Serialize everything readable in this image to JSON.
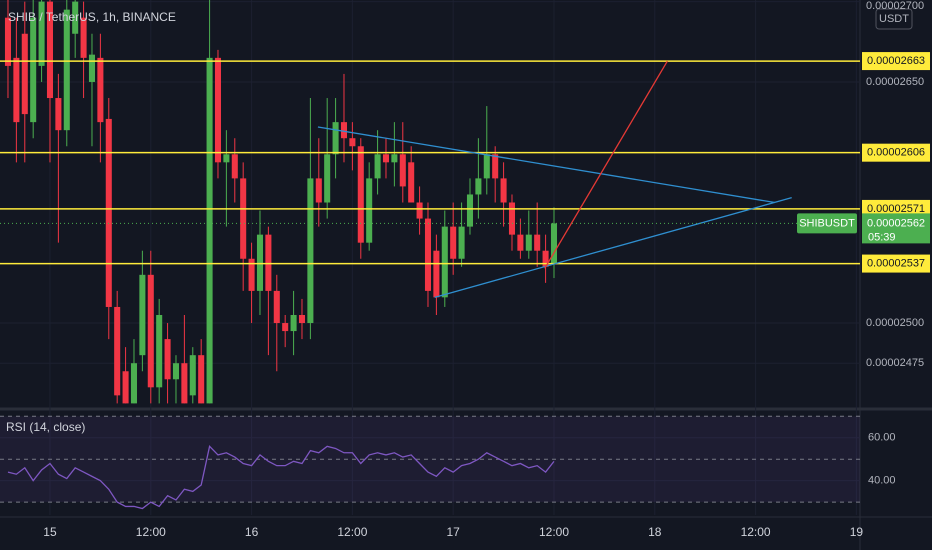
{
  "header": {
    "title": "SHIB / TetherUS, 1h, BINANCE"
  },
  "chart_data": [
    {
      "type": "candlestick",
      "currency": "USDT",
      "up_color": "#4caf50",
      "down_color": "#f23645",
      "candles": {
        "open": [
          2.69e-05,
          2.665e-05,
          2.68e-05,
          2.625e-05,
          2.66e-05,
          2.7e-05,
          2.64e-05,
          2.62e-05,
          2.68e-05,
          2.69e-05,
          2.65e-05,
          2.665e-05,
          2.627e-05,
          2.51e-05,
          2.47e-05,
          2.45e-05,
          2.48e-05,
          2.53e-05,
          2.46e-05,
          2.49e-05,
          2.465e-05,
          2.475e-05,
          2.455e-05,
          2.48e-05,
          2.45e-05,
          2.665e-05,
          2.6e-05,
          2.605e-05,
          2.59e-05,
          2.54e-05,
          2.52e-05,
          2.555e-05,
          2.52e-05,
          2.5e-05,
          2.495e-05,
          2.505e-05,
          2.5e-05,
          2.59e-05,
          2.575e-05,
          2.605e-05,
          2.625e-05,
          2.615e-05,
          2.61e-05,
          2.55e-05,
          2.59e-05,
          2.605e-05,
          2.6e-05,
          2.605e-05,
          2.6e-05,
          2.575e-05,
          2.565e-05,
          2.545e-05,
          2.516e-05,
          2.56e-05,
          2.54e-05,
          2.56e-05,
          2.58e-05,
          2.59e-05,
          2.605e-05,
          2.59e-05,
          2.575e-05,
          2.555e-05,
          2.545e-05,
          2.555e-05,
          2.545e-05,
          2.537e-05
        ],
        "high": [
          2.705e-05,
          2.69e-05,
          2.7e-05,
          2.705e-05,
          2.705e-05,
          2.705e-05,
          2.655e-05,
          2.705e-05,
          2.705e-05,
          2.7e-05,
          2.68e-05,
          2.68e-05,
          2.64e-05,
          2.52e-05,
          2.485e-05,
          2.49e-05,
          2.545e-05,
          2.545e-05,
          2.515e-05,
          2.5e-05,
          2.48e-05,
          2.505e-05,
          2.485e-05,
          2.49e-05,
          2.705e-05,
          2.67e-05,
          2.62e-05,
          2.615e-05,
          2.6e-05,
          2.55e-05,
          2.57e-05,
          2.56e-05,
          2.53e-05,
          2.505e-05,
          2.52e-05,
          2.515e-05,
          2.64e-05,
          2.615e-05,
          2.64e-05,
          2.64e-05,
          2.655e-05,
          2.625e-05,
          2.615e-05,
          2.6e-05,
          2.62e-05,
          2.615e-05,
          2.625e-05,
          2.625e-05,
          2.61e-05,
          2.585e-05,
          2.575e-05,
          2.555e-05,
          2.57e-05,
          2.575e-05,
          2.575e-05,
          2.59e-05,
          2.615e-05,
          2.635e-05,
          2.61e-05,
          2.6e-05,
          2.58e-05,
          2.565e-05,
          2.57e-05,
          2.575e-05,
          2.555e-05,
          2.572e-05
        ],
        "low": [
          2.64e-05,
          2.6e-05,
          2.6e-05,
          2.615e-05,
          2.65e-05,
          2.6e-05,
          2.55e-05,
          2.61e-05,
          2.665e-05,
          2.64e-05,
          2.61e-05,
          2.6e-05,
          2.49e-05,
          2.45e-05,
          2.45e-05,
          2.45e-05,
          2.47e-05,
          2.45e-05,
          2.45e-05,
          2.45e-05,
          2.45e-05,
          2.45e-05,
          2.45e-05,
          2.45e-05,
          2.45e-05,
          2.59e-05,
          2.56e-05,
          2.575e-05,
          2.52e-05,
          2.5e-05,
          2.505e-05,
          2.48e-05,
          2.47e-05,
          2.485e-05,
          2.48e-05,
          2.49e-05,
          2.49e-05,
          2.56e-05,
          2.565e-05,
          2.59e-05,
          2.6e-05,
          2.595e-05,
          2.54e-05,
          2.545e-05,
          2.58e-05,
          2.59e-05,
          2.585e-05,
          2.575e-05,
          2.575e-05,
          2.555e-05,
          2.51e-05,
          2.505e-05,
          2.51e-05,
          2.53e-05,
          2.535e-05,
          2.555e-05,
          2.565e-05,
          2.58e-05,
          2.575e-05,
          2.56e-05,
          2.545e-05,
          2.54e-05,
          2.54e-05,
          2.535e-05,
          2.525e-05,
          2.528e-05
        ],
        "close": [
          2.66e-05,
          2.625e-05,
          2.63e-05,
          2.69e-05,
          2.7e-05,
          2.64e-05,
          2.62e-05,
          2.695e-05,
          2.7e-05,
          2.665e-05,
          2.667e-05,
          2.625e-05,
          2.51e-05,
          2.455e-05,
          2.45e-05,
          2.475e-05,
          2.53e-05,
          2.46e-05,
          2.505e-05,
          2.465e-05,
          2.475e-05,
          2.45e-05,
          2.48e-05,
          2.45e-05,
          2.665e-05,
          2.6e-05,
          2.605e-05,
          2.59e-05,
          2.54e-05,
          2.52e-05,
          2.555e-05,
          2.52e-05,
          2.5e-05,
          2.495e-05,
          2.505e-05,
          2.5e-05,
          2.59e-05,
          2.575e-05,
          2.605e-05,
          2.625e-05,
          2.615e-05,
          2.61e-05,
          2.55e-05,
          2.59e-05,
          2.605e-05,
          2.6e-05,
          2.605e-05,
          2.585e-05,
          2.575e-05,
          2.565e-05,
          2.52e-05,
          2.516e-05,
          2.56e-05,
          2.54e-05,
          2.56e-05,
          2.58e-05,
          2.59e-05,
          2.605e-05,
          2.59e-05,
          2.575e-05,
          2.555e-05,
          2.545e-05,
          2.555e-05,
          2.545e-05,
          2.535e-05,
          2.562e-05
        ]
      },
      "xlim": [
        -0.95,
        101.43
      ],
      "xticks": [
        {
          "value": 5,
          "label": "15"
        },
        {
          "value": 17,
          "label": "12:00"
        },
        {
          "value": 29,
          "label": "16"
        },
        {
          "value": 41,
          "label": "12:00"
        },
        {
          "value": 53,
          "label": "17"
        },
        {
          "value": 65,
          "label": "12:00"
        },
        {
          "value": 77,
          "label": "18"
        },
        {
          "value": 89,
          "label": "12:00"
        },
        {
          "value": 101,
          "label": "19"
        }
      ],
      "ylim": [
        2.449e-05,
        2.701e-05
      ],
      "yticks": [
        {
          "value": 2.7e-05,
          "label": "0.00002700"
        },
        {
          "value": 2.65e-05,
          "label": "0.00002650"
        },
        {
          "value": 2.5e-05,
          "label": "0.00002500"
        },
        {
          "value": 2.475e-05,
          "label": "0.00002475"
        }
      ],
      "grid": true,
      "levels": {
        "color": "#ffeb3b",
        "values": [
          2.663e-05,
          2.606e-05,
          2.571e-05,
          2.537e-05
        ]
      },
      "last_price": {
        "symbol": "SHIBUSDT",
        "value": 2.562e-05,
        "countdown": "05:39",
        "color": "#4caf50"
      },
      "trendlines": [
        {
          "color": "#2f8fd0",
          "points": [
            [
              36.9,
              2.622e-05
            ],
            [
              91.3,
              2.575e-05
            ]
          ]
        },
        {
          "color": "#2f8fd0",
          "points": [
            [
              50.8,
              2.516e-05
            ],
            [
              93.3,
              2.578e-05
            ]
          ]
        },
        {
          "color": "#e53935",
          "points": [
            [
              63.9,
              2.534e-05
            ],
            [
              78.5,
              2.663e-05
            ]
          ]
        }
      ]
    },
    {
      "type": "line",
      "title": "RSI (14, close)",
      "color": "#7e57c2",
      "values": [
        44,
        43,
        46,
        40,
        45,
        48,
        43,
        41,
        46,
        44,
        42,
        40,
        36,
        30,
        28,
        28,
        27,
        30,
        28,
        33,
        31,
        36,
        35,
        38,
        56,
        52,
        53,
        51,
        48,
        47,
        52,
        49,
        47,
        47,
        49,
        48,
        54,
        53,
        56,
        55,
        53,
        53,
        48,
        52,
        53,
        52,
        53,
        51,
        52,
        48,
        44,
        42,
        46,
        44,
        47,
        48,
        50,
        53,
        51,
        49,
        47,
        48,
        46,
        47,
        44,
        49
      ],
      "ylim": [
        24,
        72
      ],
      "yticks": [
        {
          "value": 60,
          "label": "60.00"
        },
        {
          "value": 40,
          "label": "40.00"
        }
      ],
      "band_lines": [
        70,
        50,
        30
      ]
    }
  ]
}
